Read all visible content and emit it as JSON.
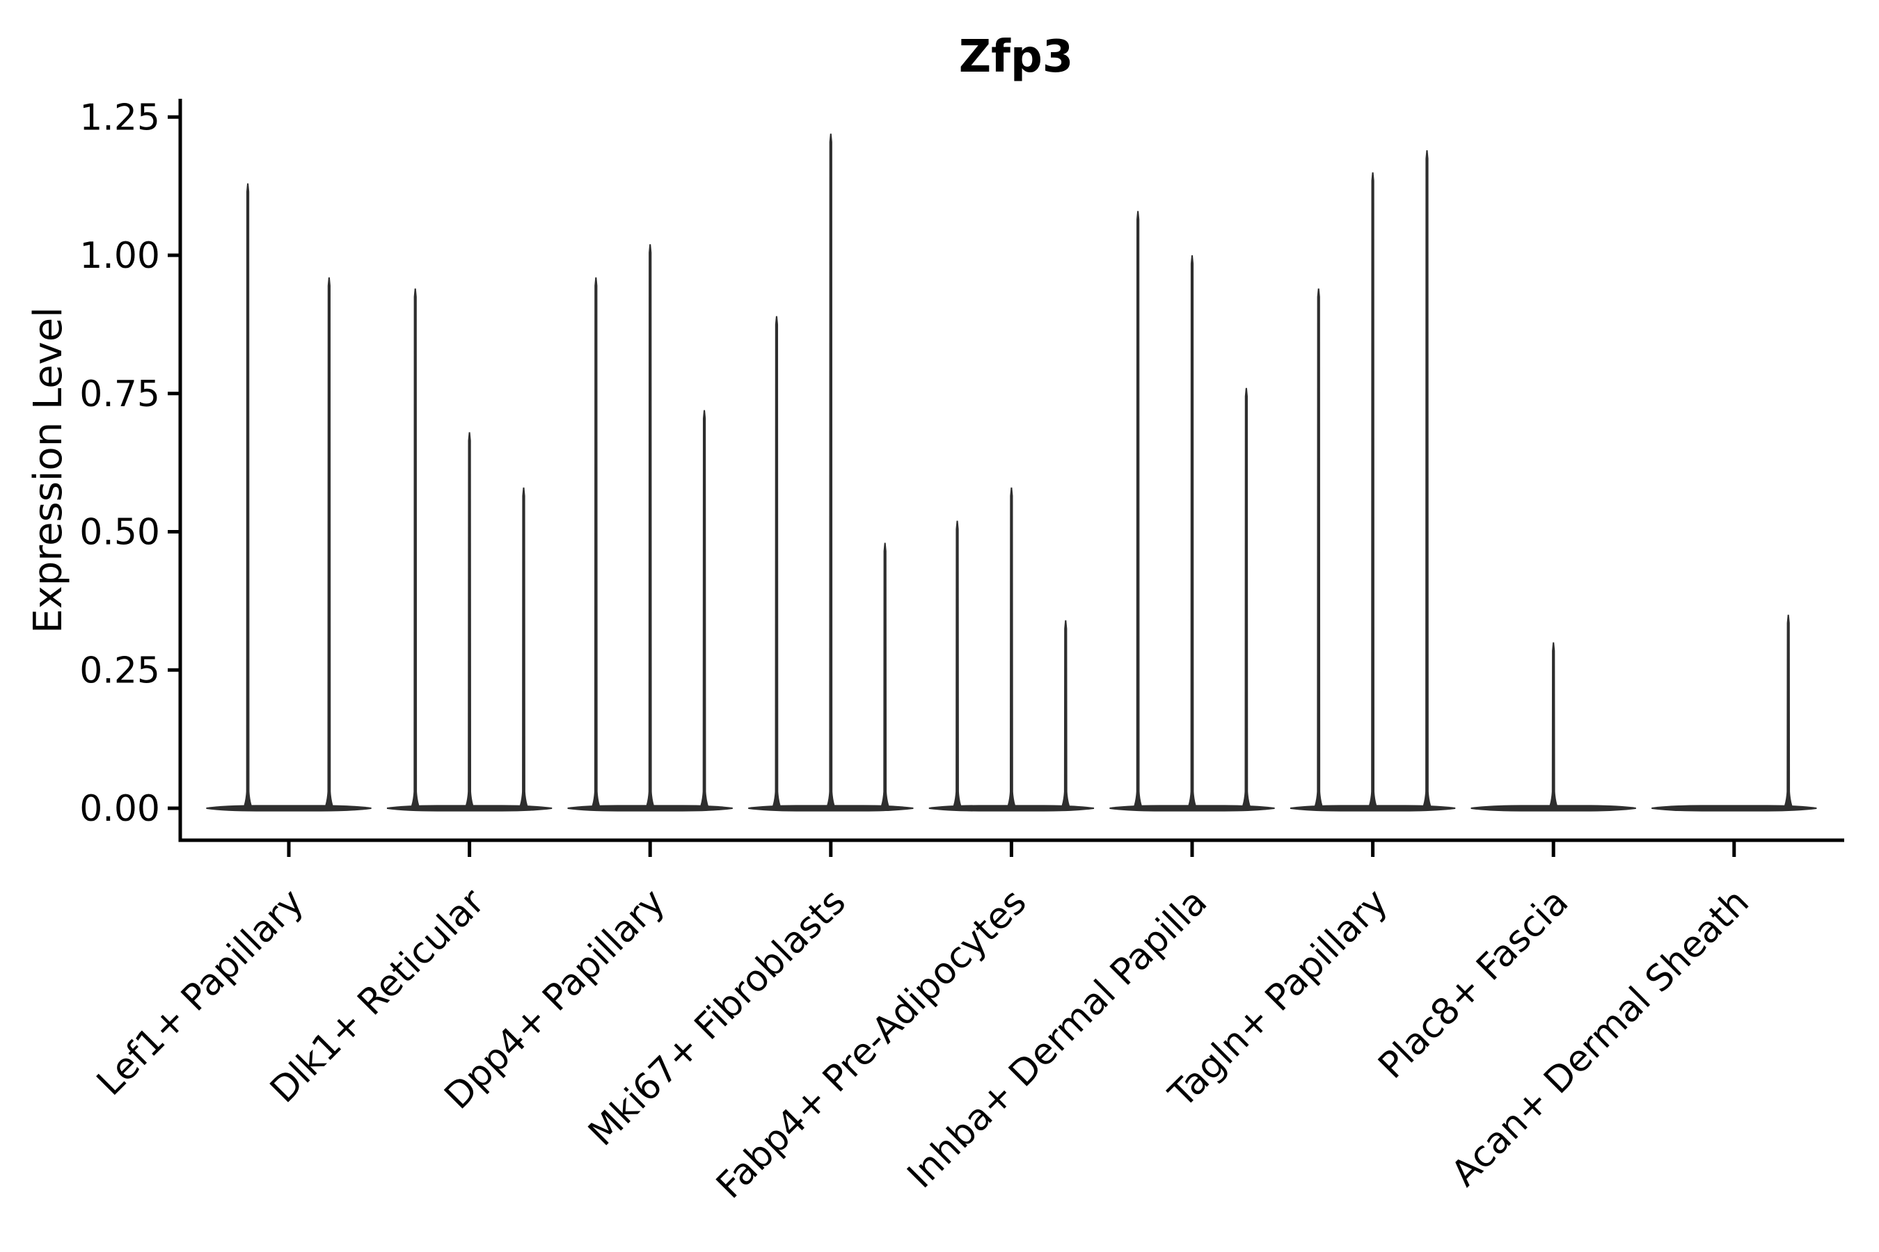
{
  "figure": {
    "background": "#ffffff",
    "ink_color": "#2e2e2e",
    "axis_color": "#000000"
  },
  "chart_data": {
    "type": "violin",
    "title": "Zfp3",
    "xlabel": "",
    "ylabel": "Expression Level",
    "grid": false,
    "legend": "none",
    "ylim": [
      -0.06,
      1.28
    ],
    "ytick_values": [
      0.0,
      0.25,
      0.5,
      0.75,
      1.0,
      1.25
    ],
    "ytick_labels": [
      "0.00",
      "0.25",
      "0.50",
      "0.75",
      "1.00",
      "1.25"
    ],
    "violin_base_halfwidth_units": 0.457,
    "categories": [
      "Lef1+ Papillary",
      "Dlk1+ Reticular",
      "Dpp4+ Papillary",
      "Mki67+ Fibroblasts",
      "Fabp4+ Pre-Adipocytes",
      "Inhba+ Dermal Papilla",
      "Tagln+ Papillary",
      "Plac8+ Fascia",
      "Acan+ Dermal Sheath"
    ],
    "groups": [
      {
        "category": "Lef1+ Papillary",
        "violins": [
          {
            "pos": -0.227,
            "max": 1.13
          },
          {
            "pos": 0.223,
            "max": 0.96
          }
        ]
      },
      {
        "category": "Dlk1+ Reticular",
        "violins": [
          {
            "pos": -0.3,
            "max": 0.94
          },
          {
            "pos": 0.0,
            "max": 0.68
          },
          {
            "pos": 0.3,
            "max": 0.58
          }
        ]
      },
      {
        "category": "Dpp4+ Papillary",
        "violins": [
          {
            "pos": -0.3,
            "max": 0.96
          },
          {
            "pos": 0.0,
            "max": 1.02
          },
          {
            "pos": 0.3,
            "max": 0.72
          }
        ]
      },
      {
        "category": "Mki67+ Fibroblasts",
        "violins": [
          {
            "pos": -0.3,
            "max": 0.89
          },
          {
            "pos": 0.0,
            "max": 1.22
          },
          {
            "pos": 0.3,
            "max": 0.48
          }
        ]
      },
      {
        "category": "Fabp4+ Pre-Adipocytes",
        "violins": [
          {
            "pos": -0.3,
            "max": 0.52
          },
          {
            "pos": 0.0,
            "max": 0.58
          },
          {
            "pos": 0.3,
            "max": 0.34
          }
        ]
      },
      {
        "category": "Inhba+ Dermal Papilla",
        "violins": [
          {
            "pos": -0.3,
            "max": 1.08
          },
          {
            "pos": 0.0,
            "max": 1.0
          },
          {
            "pos": 0.3,
            "max": 0.76
          }
        ]
      },
      {
        "category": "Tagln+ Papillary",
        "violins": [
          {
            "pos": -0.3,
            "max": 0.94
          },
          {
            "pos": 0.0,
            "max": 1.15
          },
          {
            "pos": 0.3,
            "max": 1.19
          }
        ]
      },
      {
        "category": "Plac8+ Fascia",
        "violins": [
          {
            "pos": 0.0,
            "max": 0.3
          }
        ]
      },
      {
        "category": "Acan+ Dermal Sheath",
        "violins": [
          {
            "pos": 0.3,
            "max": 0.35
          }
        ]
      }
    ]
  }
}
